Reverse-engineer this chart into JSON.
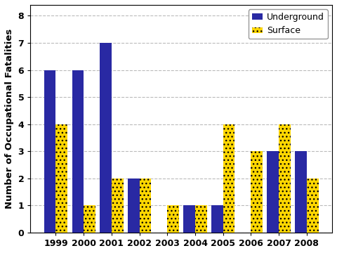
{
  "years": [
    "1999",
    "2000",
    "2001",
    "2002",
    "2003",
    "2004",
    "2005",
    "2006",
    "2007",
    "2008"
  ],
  "underground": [
    6,
    6,
    7,
    2,
    0,
    1,
    1,
    0,
    3,
    3
  ],
  "surface": [
    4,
    1,
    2,
    2,
    1,
    1,
    4,
    3,
    4,
    2
  ],
  "underground_color": "#2929A3",
  "surface_color": "#FFD700",
  "ylabel": "Number of Occupational Fatalities",
  "ylim": [
    0,
    8.4
  ],
  "yticks": [
    0,
    1,
    2,
    3,
    4,
    5,
    6,
    7,
    8
  ],
  "legend_labels": [
    "Underground",
    "Surface"
  ],
  "bar_width": 0.42,
  "grid_color": "#BBBBBB",
  "grid_linestyle": "--",
  "grid_linewidth": 0.8,
  "label_fontsize": 9.5,
  "tick_fontsize": 9,
  "legend_fontsize": 9,
  "fig_width": 4.8,
  "fig_height": 3.6,
  "dpi": 100
}
